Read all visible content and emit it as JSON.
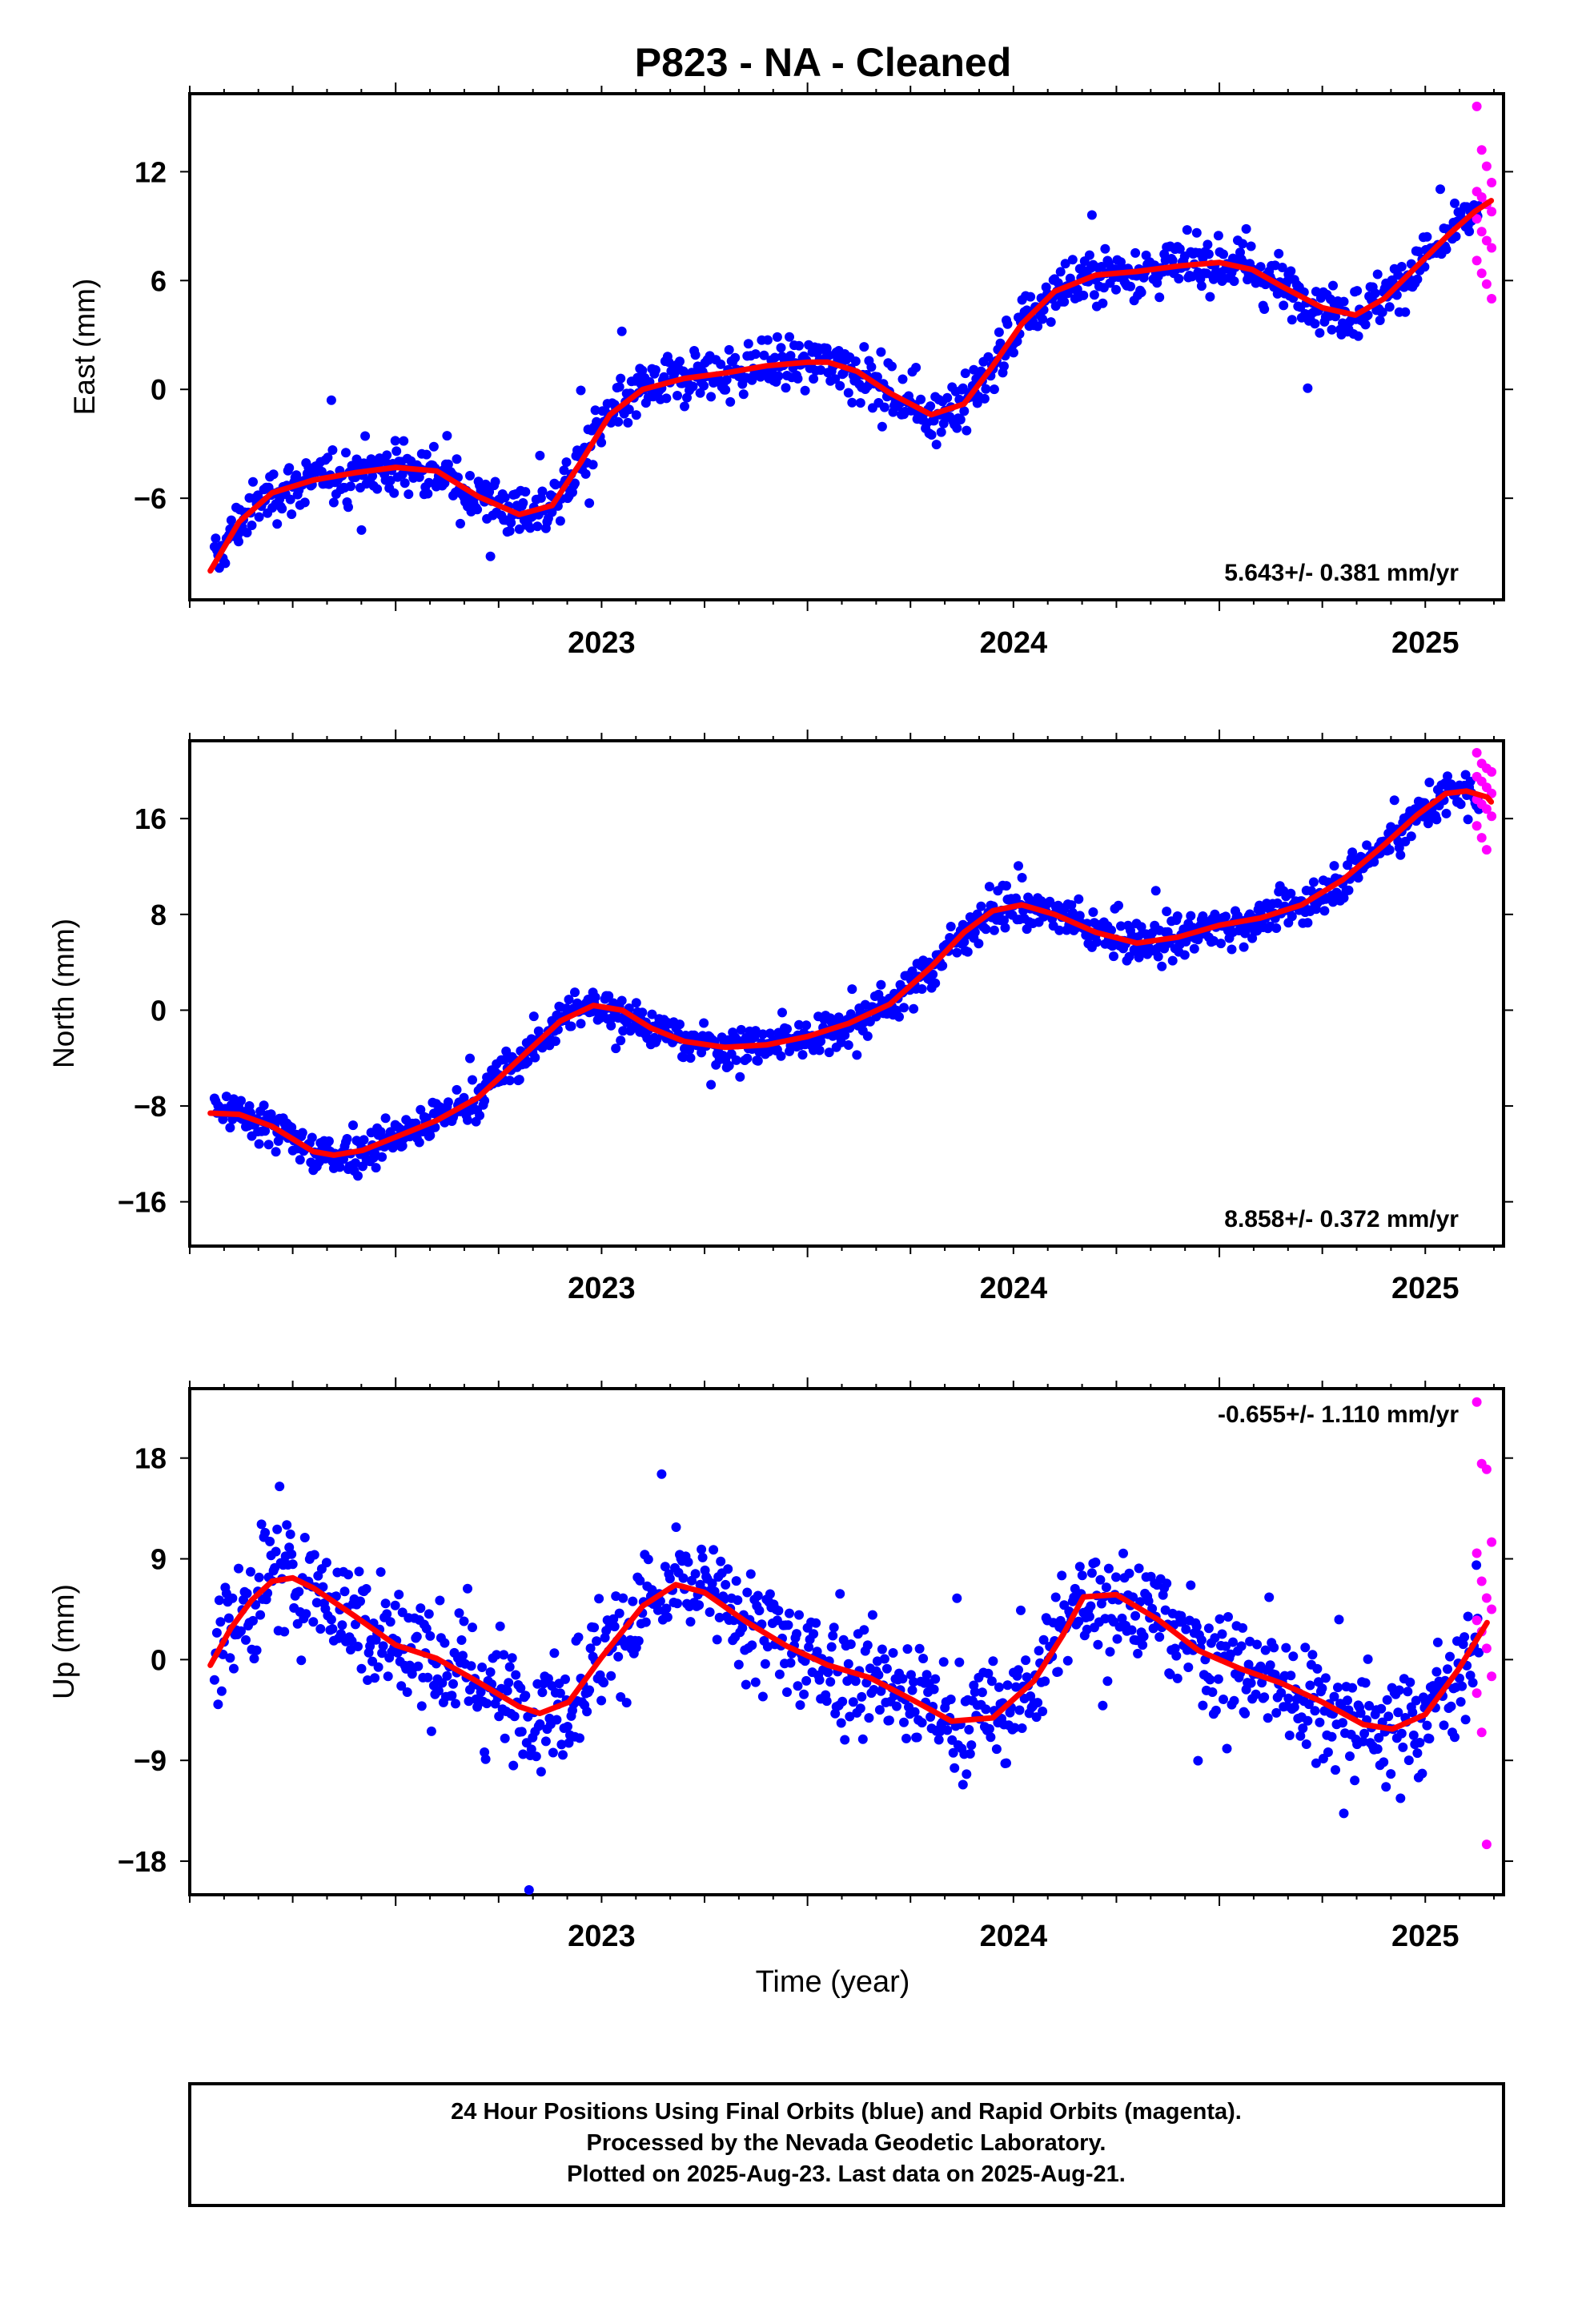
{
  "chart_data": {
    "type": "scatter",
    "title": "P823  - NA - Cleaned",
    "xlabel": "Time (year)",
    "xlim": [
      2022.5,
      2025.69
    ],
    "x_ticks": [
      2023,
      2024,
      2025
    ],
    "colors": {
      "final": "#0000ff",
      "rapid": "#ff00ff",
      "fit": "#ff0000"
    },
    "grid": false,
    "panels": [
      {
        "name": "east",
        "ylabel": "East (mm)",
        "ylim": [
          -11.6,
          16.3
        ],
        "y_ticks": [
          -6,
          0,
          6,
          12
        ],
        "rate_text": "5.643+/- 0.381 mm/yr",
        "rate_position": "bottom-right",
        "fit_x": [
          2022.55,
          2022.62,
          2022.7,
          2022.8,
          2022.9,
          2023.0,
          2023.1,
          2023.2,
          2023.3,
          2023.38,
          2023.45,
          2023.52,
          2023.6,
          2023.7,
          2023.8,
          2023.9,
          2024.0,
          2024.05,
          2024.12,
          2024.2,
          2024.3,
          2024.38,
          2024.45,
          2024.52,
          2024.6,
          2024.7,
          2024.8,
          2024.9,
          2025.0,
          2025.08,
          2025.15,
          2025.25,
          2025.33,
          2025.4,
          2025.48,
          2025.56,
          2025.62,
          2025.66
        ],
        "fit_y": [
          -10.0,
          -7.3,
          -5.7,
          -5.0,
          -4.6,
          -4.3,
          -4.5,
          -5.9,
          -6.9,
          -6.4,
          -4.0,
          -1.4,
          0.0,
          0.6,
          0.9,
          1.3,
          1.5,
          1.5,
          1.0,
          -0.2,
          -1.4,
          -0.8,
          1.3,
          3.6,
          5.4,
          6.3,
          6.5,
          6.8,
          7.0,
          6.6,
          5.7,
          4.5,
          4.1,
          5.0,
          6.8,
          8.6,
          9.8,
          10.4
        ],
        "rapid_y": [
          15.6,
          13.2,
          12.3,
          11.4,
          10.9,
          10.6,
          10.2,
          9.8,
          9.4,
          8.7,
          8.2,
          7.8,
          7.1,
          6.4,
          5.8,
          5.0
        ],
        "fin_trend": [
          -9.8,
          2.28,
          2.45,
          -4.3,
          1.54,
          0.26,
          3.69
        ],
        "fin_noise": 1.0
      },
      {
        "name": "north",
        "ylabel": "North (mm)",
        "ylim": [
          -19.7,
          22.5
        ],
        "y_ticks": [
          -16,
          -8,
          0,
          8,
          16
        ],
        "rate_text": "8.858+/- 0.372 mm/yr",
        "rate_position": "bottom-right",
        "fit_x": [
          2022.55,
          2022.62,
          2022.7,
          2022.8,
          2022.85,
          2022.92,
          2023.0,
          2023.1,
          2023.2,
          2023.3,
          2023.4,
          2023.48,
          2023.55,
          2023.62,
          2023.7,
          2023.8,
          2023.9,
          2024.0,
          2024.1,
          2024.2,
          2024.3,
          2024.38,
          2024.45,
          2024.52,
          2024.6,
          2024.7,
          2024.8,
          2024.9,
          2025.0,
          2025.1,
          2025.2,
          2025.3,
          2025.4,
          2025.48,
          2025.55,
          2025.6,
          2025.65,
          2025.66
        ],
        "fit_y": [
          -8.6,
          -8.7,
          -9.7,
          -11.8,
          -12.1,
          -11.7,
          -10.6,
          -9.2,
          -7.3,
          -4.1,
          -0.9,
          0.4,
          0.0,
          -1.5,
          -2.6,
          -3.1,
          -2.9,
          -2.2,
          -1.1,
          0.5,
          3.6,
          6.5,
          8.3,
          8.8,
          8.0,
          6.5,
          5.6,
          6.1,
          7.1,
          7.7,
          8.8,
          10.9,
          13.8,
          16.3,
          18.1,
          18.3,
          17.8,
          17.4
        ],
        "rapid_y": [
          21.5,
          20.6,
          20.2,
          19.9,
          19.5,
          19.1,
          18.6,
          18.1,
          17.6,
          17.2,
          16.8,
          16.2,
          15.4,
          14.4,
          13.4
        ],
        "fin_trend": [
          -9.5,
          8.86,
          0.0,
          0.0,
          3.6,
          0.0,
          4.28
        ],
        "fin_noise": 1.2
      },
      {
        "name": "up",
        "ylabel": "Up (mm)",
        "ylim": [
          -21.0,
          24.2
        ],
        "y_ticks": [
          -18,
          -9,
          0,
          9,
          18
        ],
        "rate_text": "-0.655+/- 1.110 mm/yr",
        "rate_position": "top-right",
        "fit_x": [
          2022.55,
          2022.6,
          2022.65,
          2022.7,
          2022.75,
          2022.8,
          2022.9,
          2023.0,
          2023.1,
          2023.2,
          2023.3,
          2023.35,
          2023.42,
          2023.5,
          2023.6,
          2023.68,
          2023.75,
          2023.85,
          2023.95,
          2024.05,
          2024.15,
          2024.25,
          2024.35,
          2024.45,
          2024.55,
          2024.62,
          2024.67,
          2024.75,
          2024.85,
          2024.95,
          2025.05,
          2025.15,
          2025.25,
          2025.35,
          2025.42,
          2025.5,
          2025.58,
          2025.65
        ],
        "fit_y": [
          -0.5,
          2.8,
          5.3,
          7.0,
          7.3,
          6.4,
          3.9,
          1.3,
          0.1,
          -2.0,
          -4.2,
          -4.8,
          -3.8,
          0.2,
          4.8,
          6.7,
          6.0,
          3.4,
          1.2,
          -0.5,
          -1.6,
          -3.5,
          -5.5,
          -5.2,
          -1.9,
          2.2,
          5.6,
          5.8,
          3.6,
          0.8,
          -0.8,
          -2.1,
          -3.8,
          -5.8,
          -6.2,
          -4.9,
          -0.9,
          3.3
        ],
        "rapid_y": [
          23.0,
          17.5,
          17.0,
          10.5,
          9.5,
          7.0,
          5.5,
          4.5,
          3.5,
          2.5,
          1.0,
          -1.5,
          -3.0,
          -6.5,
          -16.5
        ],
        "fin_trend": [
          1.0,
          -0.65,
          0.0,
          0.0,
          6.55,
          0.9,
          4.23
        ],
        "fin_noise": 3.6
      }
    ],
    "footer_lines": [
      "24 Hour Positions Using Final Orbits (blue) and Rapid Orbits (magenta).",
      "Processed by the Nevada Geodetic Laboratory.",
      "Plotted on 2025-Aug-23. Last data on 2025-Aug-21."
    ]
  }
}
